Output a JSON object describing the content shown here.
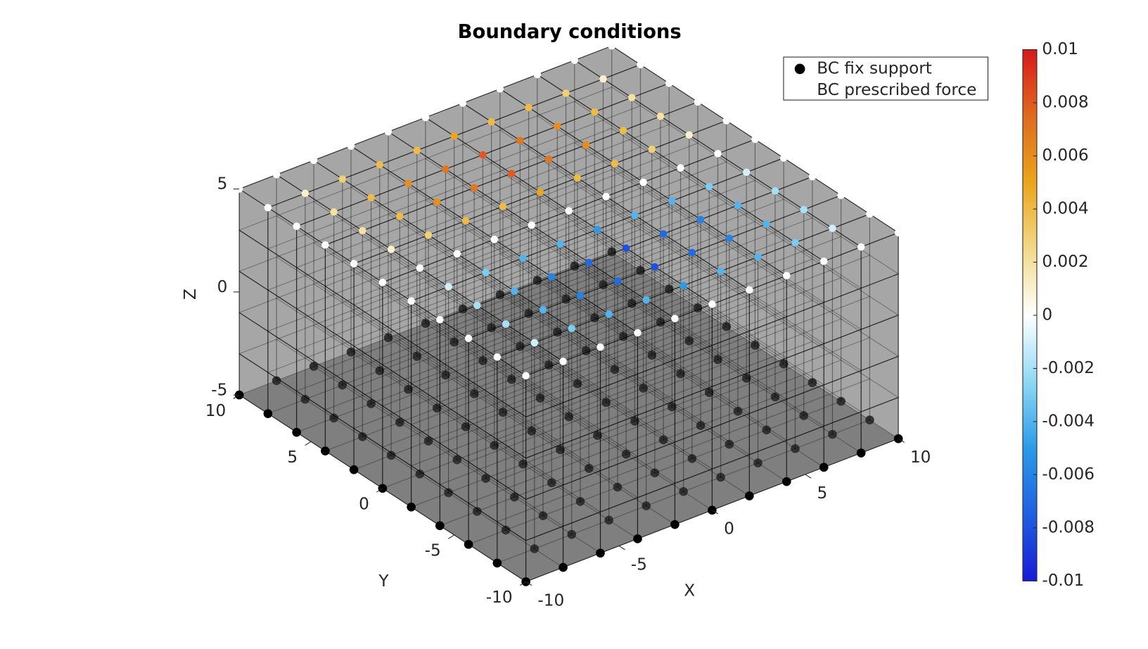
{
  "chart_data": {
    "type": "scatter3",
    "title": "Boundary conditions",
    "xlabel": "X",
    "ylabel": "Y",
    "zlabel": "Z",
    "x": [
      -10,
      -8,
      -6,
      -4,
      -2,
      0,
      2,
      4,
      6,
      8,
      10
    ],
    "y": [
      -10,
      -8,
      -6,
      -4,
      -2,
      0,
      2,
      4,
      6,
      8,
      10
    ],
    "xlim": [
      -10,
      10
    ],
    "ylim": [
      -10,
      10
    ],
    "zlim": [
      -5,
      5
    ],
    "xticks": [
      -10,
      -5,
      0,
      5,
      10
    ],
    "yticks": [
      -10,
      -5,
      0,
      5,
      10
    ],
    "zticks": [
      -5,
      0,
      5
    ],
    "series": [
      {
        "name": "BC fix support",
        "color": "#000000",
        "z": -5
      },
      {
        "name": "BC prescribed force",
        "z": 5,
        "values": [
          [
            0,
            0,
            0,
            0,
            0,
            0,
            0,
            0,
            0,
            0,
            0
          ],
          [
            0,
            -0.001,
            -0.003,
            -0.004,
            -0.004,
            -0.005,
            -0.004,
            -0.004,
            -0.003,
            -0.001,
            0
          ],
          [
            0,
            -0.002,
            -0.004,
            -0.006,
            -0.007,
            -0.008,
            -0.007,
            -0.006,
            -0.004,
            -0.002,
            0
          ],
          [
            0,
            -0.002,
            -0.004,
            -0.006,
            -0.007,
            -0.008,
            -0.007,
            -0.006,
            -0.004,
            -0.002,
            0
          ],
          [
            0,
            -0.001,
            -0.003,
            -0.004,
            -0.004,
            -0.005,
            -0.004,
            -0.004,
            -0.003,
            -0.001,
            0
          ],
          [
            0,
            0,
            0,
            0,
            0,
            0,
            0,
            0,
            0,
            0,
            0
          ],
          [
            0,
            0.001,
            0.003,
            0.004,
            0.004,
            0.005,
            0.004,
            0.004,
            0.003,
            0.001,
            0
          ],
          [
            0,
            0.002,
            0.004,
            0.006,
            0.007,
            0.008,
            0.007,
            0.006,
            0.004,
            0.002,
            0
          ],
          [
            0,
            0.002,
            0.004,
            0.006,
            0.007,
            0.008,
            0.007,
            0.006,
            0.004,
            0.002,
            0
          ],
          [
            0,
            0.001,
            0.003,
            0.004,
            0.004,
            0.005,
            0.004,
            0.004,
            0.003,
            0.001,
            0
          ],
          [
            0,
            0,
            0,
            0,
            0,
            0,
            0,
            0,
            0,
            0,
            0
          ]
        ]
      }
    ],
    "clim": [
      -0.01,
      0.01
    ],
    "cticks": [
      -0.01,
      -0.008,
      -0.006,
      -0.004,
      -0.002,
      0,
      0.002,
      0.004,
      0.006,
      0.008,
      0.01
    ],
    "colormap": [
      "#1a1ad6",
      "#1f5fe0",
      "#2b9be8",
      "#8fd8f5",
      "#ffffff",
      "#f3d98a",
      "#eaa51c",
      "#e06a1e",
      "#d7191c"
    ],
    "legend": "northeast"
  }
}
